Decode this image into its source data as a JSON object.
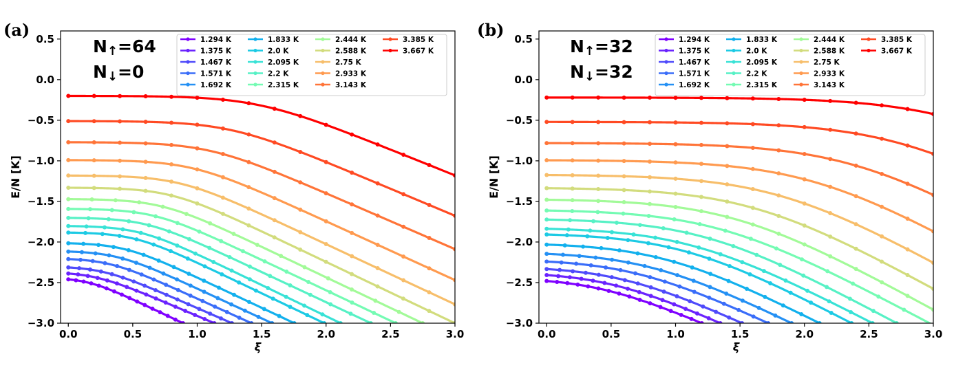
{
  "chart_data": [
    {
      "panel_label": "(a)",
      "type": "line",
      "xlabel": "ξ",
      "ylabel": "E/N [K]",
      "xlim": [
        -0.06,
        3.0
      ],
      "ylim": [
        -3.0,
        0.6
      ],
      "xticks": [
        "0.0",
        "0.5",
        "1.0",
        "1.5",
        "2.0",
        "2.5",
        "3.0"
      ],
      "yticks": [
        "0.5",
        "0.0",
        "−0.5",
        "−1.0",
        "−1.5",
        "−2.0",
        "−2.5",
        "−3.0"
      ],
      "annotation": {
        "up_label": "N",
        "up_arrow": "↑",
        "up_value": "=64",
        "down_label": "N",
        "down_arrow": "↓",
        "down_value": "=0"
      },
      "legend": [
        "1.294 K",
        "1.375 K",
        "1.467 K",
        "1.571 K",
        "1.692 K",
        "1.833 K",
        "2.0 K",
        "2.095 K",
        "2.2 K",
        "2.315 K",
        "2.444 K",
        "2.588 K",
        "2.75 K",
        "2.933 K",
        "3.143 K",
        "3.385 K",
        "3.667 K"
      ],
      "series": [
        {
          "name": "1.294 K",
          "color": "#7f00ff",
          "E0": -2.44,
          "x0": 0.15,
          "k": 0.085,
          "q": 8.9
        },
        {
          "name": "1.375 K",
          "color": "#6a22fe",
          "E0": -2.37,
          "x0": 0.2,
          "k": 0.09,
          "q": 7.5
        },
        {
          "name": "1.467 K",
          "color": "#4f4afb",
          "E0": -2.3,
          "x0": 0.26,
          "k": 0.095,
          "q": 7.3
        },
        {
          "name": "1.571 K",
          "color": "#3a6df9",
          "E0": -2.2,
          "x0": 0.31,
          "k": 0.1,
          "q": 7.2
        },
        {
          "name": "1.692 K",
          "color": "#2490f4",
          "E0": -2.11,
          "x0": 0.37,
          "k": 0.105,
          "q": 7.0
        },
        {
          "name": "1.833 K",
          "color": "#12b0ed",
          "E0": -2.01,
          "x0": 0.43,
          "k": 0.11,
          "q": 6.8
        },
        {
          "name": "2.0 K",
          "color": "#1ccae4",
          "E0": -1.88,
          "x0": 0.51,
          "k": 0.115,
          "q": 6.6
        },
        {
          "name": "2.095 K",
          "color": "#38e2d6",
          "E0": -1.8,
          "x0": 0.55,
          "k": 0.12,
          "q": 6.4
        },
        {
          "name": "2.2 K",
          "color": "#56f1c5",
          "E0": -1.7,
          "x0": 0.6,
          "k": 0.12,
          "q": 6.2
        },
        {
          "name": "2.315 K",
          "color": "#74fbb3",
          "E0": -1.59,
          "x0": 0.66,
          "k": 0.125,
          "q": 6.0
        },
        {
          "name": "2.444 K",
          "color": "#a2fa98",
          "E0": -1.47,
          "x0": 0.72,
          "k": 0.13,
          "q": 5.8
        },
        {
          "name": "2.588 K",
          "color": "#d2dc7d",
          "E0": -1.33,
          "x0": 0.79,
          "k": 0.135,
          "q": 5.6
        },
        {
          "name": "2.75 K",
          "color": "#f7be6a",
          "E0": -1.18,
          "x0": 0.86,
          "k": 0.14,
          "q": 5.3
        },
        {
          "name": "2.933 K",
          "color": "#ff9a4f",
          "E0": -0.99,
          "x0": 0.96,
          "k": 0.145,
          "q": 5.0
        },
        {
          "name": "3.143 K",
          "color": "#ff7438",
          "E0": -0.77,
          "x0": 1.09,
          "k": 0.15,
          "q": 4.6
        },
        {
          "name": "3.385 K",
          "color": "#ff4a23",
          "E0": -0.51,
          "x0": 1.25,
          "k": 0.155,
          "q": 4.3
        },
        {
          "name": "3.667 K",
          "color": "#ff0000",
          "E0": -0.2,
          "x0": 1.47,
          "k": 0.16,
          "q": 4.0
        }
      ]
    },
    {
      "panel_label": "(b)",
      "type": "line",
      "xlabel": "ξ",
      "ylabel": "E/N [K]",
      "xlim": [
        -0.06,
        3.0
      ],
      "ylim": [
        -3.0,
        0.6
      ],
      "xticks": [
        "0.0",
        "0.5",
        "1.0",
        "1.5",
        "2.0",
        "2.5",
        "3.0"
      ],
      "yticks": [
        "0.5",
        "0.0",
        "−0.5",
        "−1.0",
        "−1.5",
        "−2.0",
        "−2.5",
        "−3.0"
      ],
      "annotation": {
        "up_label": "N",
        "up_arrow": "↑",
        "up_value": "=32",
        "down_label": "N",
        "down_arrow": "↓",
        "down_value": "=32"
      },
      "legend": [
        "1.294 K",
        "1.375 K",
        "1.467 K",
        "1.571 K",
        "1.692 K",
        "1.833 K",
        "2.0 K",
        "2.095 K",
        "2.2 K",
        "2.315 K",
        "2.444 K",
        "2.588 K",
        "2.75 K",
        "2.933 K",
        "3.143 K",
        "3.385 K",
        "3.667 K"
      ],
      "series": [
        {
          "name": "1.294 K",
          "color": "#7f00ff",
          "E0": -2.44,
          "x0": 0.4,
          "k": 0.19,
          "q": 3.6
        },
        {
          "name": "1.375 K",
          "color": "#6a22fe",
          "E0": -2.37,
          "x0": 0.48,
          "k": 0.21,
          "q": 3.4
        },
        {
          "name": "1.467 K",
          "color": "#4f4afb",
          "E0": -2.3,
          "x0": 0.58,
          "k": 0.23,
          "q": 3.2
        },
        {
          "name": "1.571 K",
          "color": "#3a6df9",
          "E0": -2.21,
          "x0": 0.68,
          "k": 0.25,
          "q": 3.0
        },
        {
          "name": "1.692 K",
          "color": "#2490f4",
          "E0": -2.12,
          "x0": 0.79,
          "k": 0.27,
          "q": 2.9
        },
        {
          "name": "1.833 K",
          "color": "#12b0ed",
          "E0": -2.01,
          "x0": 0.91,
          "k": 0.29,
          "q": 2.8
        },
        {
          "name": "2.0 K",
          "color": "#1ccae4",
          "E0": -1.89,
          "x0": 1.05,
          "k": 0.31,
          "q": 2.7
        },
        {
          "name": "2.095 K",
          "color": "#38e2d6",
          "E0": -1.82,
          "x0": 1.12,
          "k": 0.32,
          "q": 2.6
        },
        {
          "name": "2.2 K",
          "color": "#56f1c5",
          "E0": -1.71,
          "x0": 1.22,
          "k": 0.33,
          "q": 2.6
        },
        {
          "name": "2.315 K",
          "color": "#74fbb3",
          "E0": -1.6,
          "x0": 1.33,
          "k": 0.34,
          "q": 2.5
        },
        {
          "name": "2.444 K",
          "color": "#a2fa98",
          "E0": -1.47,
          "x0": 1.45,
          "k": 0.35,
          "q": 2.5
        },
        {
          "name": "2.588 K",
          "color": "#d2dc7d",
          "E0": -1.33,
          "x0": 1.6,
          "k": 0.36,
          "q": 2.45
        },
        {
          "name": "2.75 K",
          "color": "#f7be6a",
          "E0": -1.17,
          "x0": 1.8,
          "k": 0.37,
          "q": 2.4
        },
        {
          "name": "2.933 K",
          "color": "#ff9a4f",
          "E0": -0.99,
          "x0": 2.06,
          "k": 0.38,
          "q": 2.35
        },
        {
          "name": "3.143 K",
          "color": "#ff7438",
          "E0": -0.78,
          "x0": 2.38,
          "k": 0.39,
          "q": 2.3
        },
        {
          "name": "3.385 K",
          "color": "#ff4a23",
          "E0": -0.52,
          "x0": 2.77,
          "k": 0.4,
          "q": 2.25
        },
        {
          "name": "3.667 K",
          "color": "#ff0000",
          "E0": -0.22,
          "x0": 3.2,
          "k": 0.41,
          "q": 2.2
        }
      ]
    }
  ]
}
